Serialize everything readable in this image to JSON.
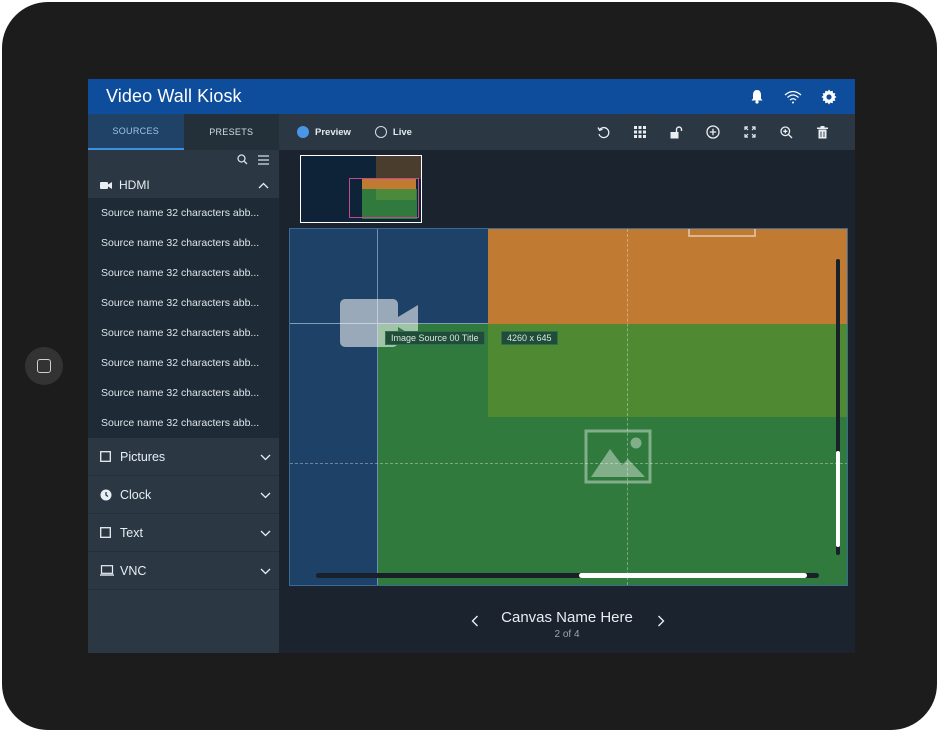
{
  "app": {
    "title": "Video Wall Kiosk"
  },
  "header_icons": [
    "bell-icon",
    "wifi-icon",
    "gear-icon"
  ],
  "sidebar": {
    "tabs": [
      {
        "label": "SOURCES",
        "active": true
      },
      {
        "label": "PRESETS",
        "active": false
      }
    ],
    "tool_icons": [
      "search-icon",
      "menu-icon"
    ],
    "hdmi_group": {
      "label": "HDMI",
      "icon": "video-camera-icon",
      "expanded": true,
      "items": [
        "Source name 32 characters abb...",
        "Source name 32 characters abb...",
        "Source name 32 characters abb...",
        "Source name 32 characters abb...",
        "Source name 32 characters abb...",
        "Source name 32 characters abb...",
        "Source name 32 characters abb...",
        "Source name 32 characters abb..."
      ]
    },
    "collapsed_groups": [
      {
        "label": "Pictures",
        "icon": "square-icon"
      },
      {
        "label": "Clock",
        "icon": "clock-icon"
      },
      {
        "label": "Text",
        "icon": "square-icon"
      },
      {
        "label": "VNC",
        "icon": "monitor-icon"
      }
    ]
  },
  "toolbar": {
    "modes": [
      {
        "label": "Preview",
        "selected": true
      },
      {
        "label": "Live",
        "selected": false
      }
    ],
    "icons": [
      "undo-icon",
      "grid-icon",
      "unlock-icon",
      "add-circle-icon",
      "fit-screen-icon",
      "zoom-in-icon",
      "trash-icon"
    ]
  },
  "canvas": {
    "source_title": "Image Source 00 Title",
    "source_resolution": "4260 x 645",
    "name": "Canvas Name Here",
    "page": "2 of 4"
  },
  "colors": {
    "title_bar": "#0e4c9c",
    "accent": "#4b95e6",
    "orange_block": "#c07a32",
    "green_block": "#2f7a3c",
    "blue_block": "#1d4167"
  }
}
